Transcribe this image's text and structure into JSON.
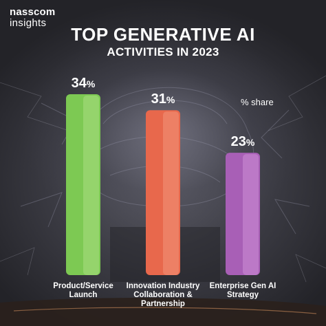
{
  "brand": {
    "name": "nasscom",
    "sub": "insights"
  },
  "chart_data": {
    "type": "bar",
    "title": "TOP GENERATIVE AI",
    "subtitle": "ACTIVITIES IN 2023",
    "legend_note": "% share",
    "categories": [
      "Product/Service Launch",
      "Innovation Industry Collaboration & Partnership",
      "Enterprise Gen AI Strategy"
    ],
    "category_lines": [
      [
        "Product/Service",
        "Launch"
      ],
      [
        "Innovation Industry",
        "Collaboration &",
        "Partnership"
      ],
      [
        "Enterprise Gen AI",
        "Strategy"
      ]
    ],
    "values": [
      34,
      31,
      23
    ],
    "value_labels": [
      "34%",
      "31%",
      "23%"
    ],
    "unit": "%",
    "ylim": [
      0,
      34
    ],
    "colors": [
      "#7dc953",
      "#e8684c",
      "#a85fb6"
    ],
    "colors_light": [
      "#9fd878",
      "#f08a70",
      "#c584cf"
    ],
    "grid": false
  }
}
